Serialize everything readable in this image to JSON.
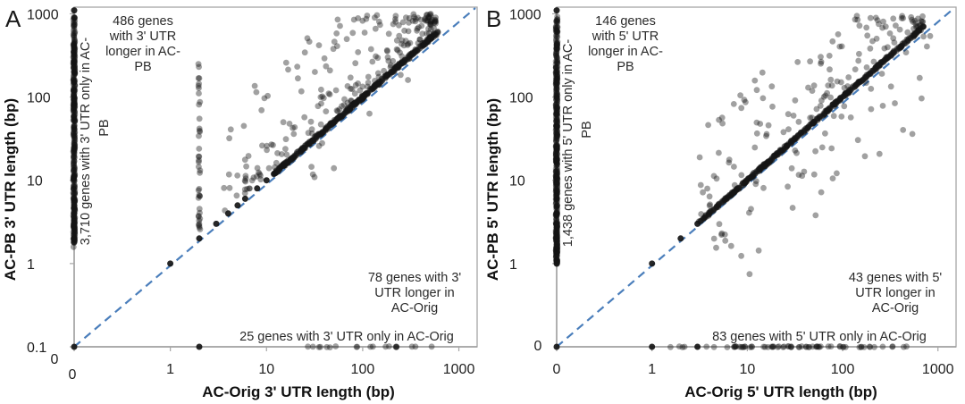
{
  "figure": {
    "background": "#ffffff",
    "dot_color": "#151515",
    "dot_opacity": 0.4,
    "identity_line_color": "#4a7ebb",
    "axis_color": "#a6a6a6",
    "text_color": "#262626"
  },
  "chart_data": [
    {
      "type": "scatter",
      "panel_label": "A",
      "xlabel": "AC-Orig 3' UTR length (bp)",
      "ylabel": "AC-PB 3' UTR length (bp)",
      "x_scale": "log",
      "y_scale": "log",
      "x_range_bp": [
        0,
        1000
      ],
      "y_range_bp": [
        0,
        1000
      ],
      "x_tick_labels": [
        "0",
        "1",
        "10",
        "100",
        "1000"
      ],
      "y_tick_labels": [
        "1000",
        "100",
        "10",
        "1",
        "0.1"
      ],
      "x_zero_label": "0",
      "y_zero_label": "0",
      "identity_line": "y = x dashed",
      "legend": "none",
      "grid": false,
      "annotations": {
        "top": {
          "count": 486,
          "lines": [
            "486 genes",
            "with 3' UTR",
            "longer in AC-",
            "PB"
          ]
        },
        "left_rotated": {
          "count": 3710,
          "lines": [
            "3,710 genes with 3' UTR only in AC-",
            "PB"
          ]
        },
        "right": {
          "count": 78,
          "lines": [
            "78 genes with 3'",
            "UTR longer in",
            "AC-Orig"
          ]
        },
        "bottom": {
          "count": 25,
          "lines": [
            "25 genes with 3' UTR only in AC-Orig"
          ]
        }
      },
      "series": [
        {
          "name": "only-in-ac-pb-column",
          "kind": "vcol",
          "x": 0,
          "count": 390,
          "lmin": 0.2,
          "lmax": 3.0,
          "pow": 0.85
        },
        {
          "name": "orig-2bp-column",
          "kind": "vcol",
          "x": 2,
          "count": 40,
          "lmin": 0.35,
          "lmax": 2.95,
          "pow": 0.55
        },
        {
          "name": "equal-length-diagonal",
          "kind": "diag",
          "count": 410,
          "lmin": 1.08,
          "lmax": 2.79,
          "jit": 1.3
        },
        {
          "name": "longer-in-ac-pb-cloud",
          "kind": "cloud",
          "count": 210,
          "xmin": 0.55,
          "xmax": 2.76,
          "xpow": 0.7,
          "dnear": 0.07,
          "dfar": 1.3,
          "dpow": 1.9,
          "ymax": 3.0
        },
        {
          "name": "longer-in-ac-orig-cloud",
          "kind": "cloud",
          "count": 9,
          "xmin": 1.4,
          "xmax": 2.72,
          "xpow": 1,
          "dnear": -0.1,
          "dfar": -0.6,
          "dpow": 1.6,
          "ymax": 3.0
        },
        {
          "name": "only-in-ac-orig-row",
          "kind": "hrow",
          "count": 20,
          "lmin": 1.3,
          "lmax": 2.72
        },
        {
          "name": "anchor-points",
          "kind": "pts",
          "points": [
            [
              0,
              0
            ],
            [
              0,
              2
            ],
            [
              0,
              3
            ],
            [
              0,
              4
            ],
            [
              0,
              5
            ],
            [
              0,
              1100
            ],
            [
              2,
              0
            ],
            [
              2,
              2
            ],
            [
              1,
              1
            ],
            [
              3,
              3
            ],
            [
              4,
              4
            ],
            [
              5,
              5
            ],
            [
              6,
              6
            ],
            [
              8,
              8
            ],
            [
              10,
              10
            ],
            [
              12,
              12
            ],
            [
              15,
              15
            ]
          ]
        }
      ]
    },
    {
      "type": "scatter",
      "panel_label": "B",
      "xlabel": "AC-Orig 5' UTR length (bp)",
      "ylabel": "AC-PB 5' UTR length (bp)",
      "x_scale": "log",
      "y_scale": "log",
      "x_range_bp": [
        0,
        1000
      ],
      "y_range_bp": [
        0,
        1000
      ],
      "x_tick_labels": [
        "0",
        "1",
        "10",
        "100",
        "1000"
      ],
      "y_tick_labels": [
        "1000",
        "100",
        "10",
        "1"
      ],
      "x_zero_label": "0",
      "y_zero_label": "0",
      "identity_line": "y = x dashed",
      "legend": "none",
      "grid": false,
      "annotations": {
        "top": {
          "count": 146,
          "lines": [
            "146 genes",
            "with 5' UTR",
            "longer in AC-",
            "PB"
          ]
        },
        "left_rotated": {
          "count": 1438,
          "lines": [
            "1,438 genes with 5' UTR only in AC-",
            "PB"
          ]
        },
        "right": {
          "count": 43,
          "lines": [
            "43 genes with 5'",
            "UTR longer in",
            "AC-Orig"
          ]
        },
        "bottom": {
          "count": 83,
          "lines": [
            "83 genes with 5' UTR only in AC-Orig"
          ]
        }
      },
      "series": [
        {
          "name": "only-in-ac-pb-column",
          "kind": "vcol",
          "x": 0,
          "count": 470,
          "lmin": 0.0,
          "lmax": 3.0,
          "pow": 0.8
        },
        {
          "name": "equal-length-diagonal",
          "kind": "diag",
          "count": 430,
          "lmin": 0.5,
          "lmax": 2.82,
          "jit": 1.1
        },
        {
          "name": "longer-in-ac-pb-cloud",
          "kind": "cloud",
          "count": 125,
          "xmin": 0.45,
          "xmax": 2.85,
          "xpow": 0.85,
          "dnear": 0.07,
          "dfar": 1.15,
          "dpow": 1.5,
          "ymax": 2.98
        },
        {
          "name": "longer-in-ac-orig-cloud",
          "kind": "cloud",
          "count": 55,
          "xmin": 0.6,
          "xmax": 2.95,
          "xpow": 0.85,
          "dnear": -0.07,
          "dfar": -1.2,
          "dpow": 1.5,
          "ymax": 2.98,
          "ymin": -0.2
        },
        {
          "name": "only-in-ac-orig-row",
          "kind": "hrow",
          "count": 70,
          "lmin": 0.0,
          "lmax": 2.98,
          "tri": true
        },
        {
          "name": "anchor-points",
          "kind": "pts",
          "points": [
            [
              0,
              0
            ],
            [
              0,
              1
            ],
            [
              0,
              2
            ],
            [
              0,
              3
            ],
            [
              0,
              4
            ],
            [
              0,
              6
            ],
            [
              0,
              1100
            ],
            [
              1,
              1
            ],
            [
              2,
              2
            ],
            [
              3,
              3
            ],
            [
              1,
              0
            ],
            [
              3,
              0
            ],
            [
              700,
              700
            ]
          ]
        }
      ]
    }
  ]
}
